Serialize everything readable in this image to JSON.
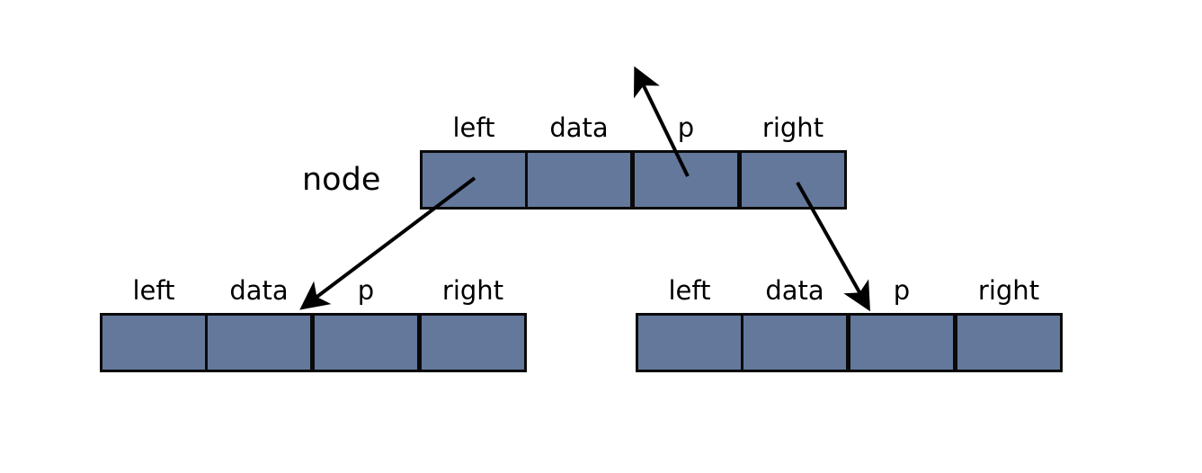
{
  "diagram": {
    "node_label": "node",
    "records": [
      {
        "id": "node",
        "fields": [
          "left",
          "data",
          "p",
          "right"
        ]
      },
      {
        "id": "left-child",
        "fields": [
          "left",
          "data",
          "p",
          "right"
        ]
      },
      {
        "id": "right-child",
        "fields": [
          "left",
          "data",
          "p",
          "right"
        ]
      }
    ],
    "links": [
      {
        "from": "node.left",
        "to": "left-child.data"
      },
      {
        "from": "node.p",
        "to": "parent"
      },
      {
        "from": "node.right",
        "to": "right-child.p"
      }
    ],
    "colors": {
      "cell_fill": "#63789b",
      "cell_border": "#0a0a0a",
      "arrow": "#000000"
    }
  }
}
